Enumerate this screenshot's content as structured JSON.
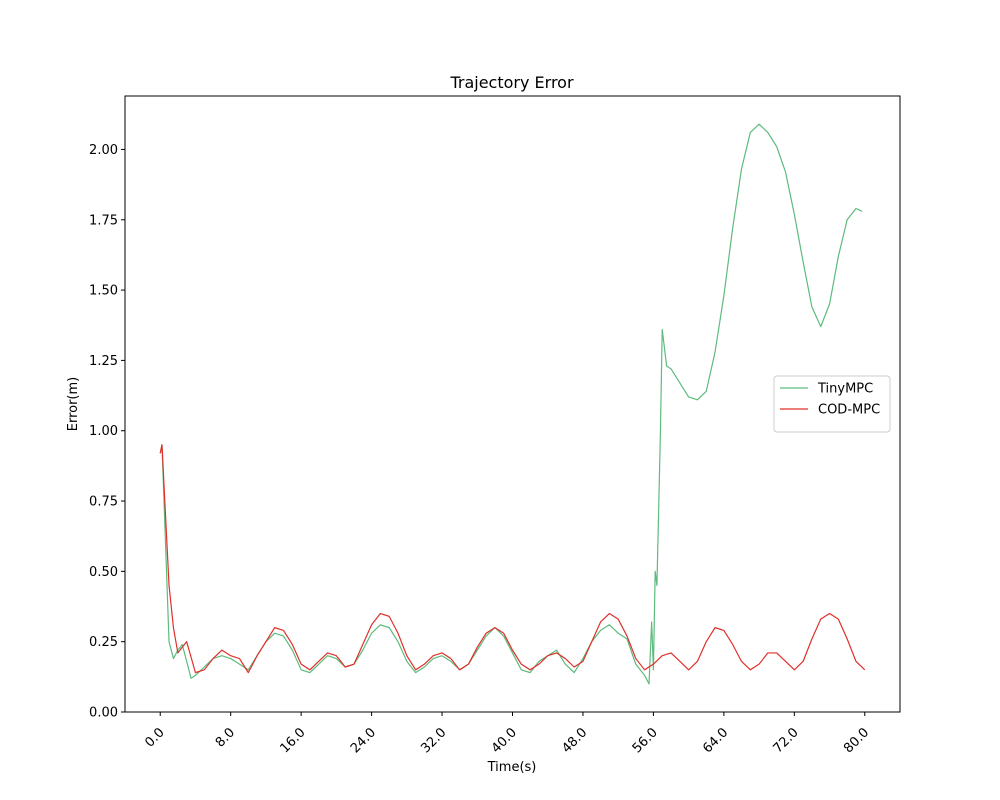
{
  "chart_data": {
    "type": "line",
    "title": "Trajectory Error",
    "x_label": "Time(s)",
    "y_label": "Error(m)",
    "xlim": [
      -4,
      84
    ],
    "ylim": [
      0.0,
      2.19
    ],
    "xticks": [
      {
        "value": 0,
        "label": "0.0"
      },
      {
        "value": 8,
        "label": "8.0"
      },
      {
        "value": 16,
        "label": "16.0"
      },
      {
        "value": 24,
        "label": "24.0"
      },
      {
        "value": 32,
        "label": "32.0"
      },
      {
        "value": 40,
        "label": "40.0"
      },
      {
        "value": 48,
        "label": "48.0"
      },
      {
        "value": 56,
        "label": "56.0"
      },
      {
        "value": 64,
        "label": "64.0"
      },
      {
        "value": 72,
        "label": "72.0"
      },
      {
        "value": 80,
        "label": "80.0"
      }
    ],
    "yticks": [
      {
        "value": 0,
        "label": "0.00"
      },
      {
        "value": 0.25,
        "label": "0.25"
      },
      {
        "value": 0.5,
        "label": "0.50"
      },
      {
        "value": 0.75,
        "label": "0.75"
      },
      {
        "value": 1.0,
        "label": "1.00"
      },
      {
        "value": 1.25,
        "label": "1.25"
      },
      {
        "value": 1.5,
        "label": "1.50"
      },
      {
        "value": 1.75,
        "label": "1.75"
      },
      {
        "value": 2.0,
        "label": "2.00"
      }
    ],
    "grid": false,
    "legend": "center right",
    "series": [
      {
        "name": "TinyMPC",
        "color": "#5dbb7e",
        "x": [
          0,
          0.2,
          1,
          1.5,
          2,
          2.5,
          3,
          3.5,
          4,
          5,
          6,
          7,
          8,
          9,
          10,
          11,
          12,
          13,
          14,
          15,
          16,
          17,
          18,
          19,
          20,
          21,
          22,
          23,
          24,
          25,
          26,
          27,
          28,
          29,
          30,
          31,
          32,
          33,
          34,
          35,
          36,
          37,
          38,
          39,
          40,
          41,
          42,
          43,
          44,
          45,
          46,
          47,
          48,
          49,
          50,
          51,
          52,
          53,
          54,
          55,
          55.5,
          55.8,
          56,
          56.2,
          56.4,
          56.8,
          57,
          57.5,
          58,
          59,
          60,
          61,
          62,
          63,
          64,
          65,
          66,
          67,
          68,
          69,
          70,
          71,
          72,
          73,
          74,
          75,
          76,
          77,
          78,
          79,
          79.7
        ],
        "values": [
          0.92,
          0.95,
          0.25,
          0.19,
          0.22,
          0.24,
          0.18,
          0.12,
          0.13,
          0.16,
          0.19,
          0.2,
          0.19,
          0.17,
          0.15,
          0.2,
          0.25,
          0.28,
          0.27,
          0.22,
          0.15,
          0.14,
          0.17,
          0.2,
          0.19,
          0.16,
          0.17,
          0.22,
          0.28,
          0.31,
          0.3,
          0.25,
          0.18,
          0.14,
          0.16,
          0.19,
          0.2,
          0.18,
          0.15,
          0.17,
          0.22,
          0.27,
          0.3,
          0.27,
          0.21,
          0.15,
          0.14,
          0.18,
          0.2,
          0.22,
          0.17,
          0.14,
          0.19,
          0.25,
          0.29,
          0.31,
          0.28,
          0.26,
          0.17,
          0.13,
          0.1,
          0.32,
          0.15,
          0.5,
          0.45,
          1.0,
          1.36,
          1.23,
          1.22,
          1.17,
          1.12,
          1.11,
          1.14,
          1.28,
          1.48,
          1.72,
          1.93,
          2.06,
          2.09,
          2.06,
          2.01,
          1.92,
          1.77,
          1.6,
          1.44,
          1.37,
          1.45,
          1.62,
          1.75,
          1.79,
          1.78
        ]
      },
      {
        "name": "COD-MPC",
        "color": "#e0302a",
        "x": [
          0,
          0.2,
          1,
          1.5,
          2,
          3,
          4,
          5,
          6,
          7,
          8,
          9,
          10,
          11,
          12,
          13,
          14,
          15,
          16,
          17,
          18,
          19,
          20,
          21,
          22,
          23,
          24,
          25,
          26,
          27,
          28,
          29,
          30,
          31,
          32,
          33,
          34,
          35,
          36,
          37,
          38,
          39,
          40,
          41,
          42,
          43,
          44,
          45,
          46,
          47,
          48,
          49,
          50,
          51,
          52,
          53,
          54,
          55,
          56,
          57,
          58,
          59,
          60,
          61,
          62,
          63,
          64,
          65,
          66,
          67,
          68,
          69,
          70,
          71,
          72,
          73,
          74,
          75,
          76,
          77,
          78,
          79,
          80
        ],
        "values": [
          0.92,
          0.95,
          0.45,
          0.3,
          0.21,
          0.25,
          0.14,
          0.15,
          0.19,
          0.22,
          0.2,
          0.19,
          0.14,
          0.2,
          0.25,
          0.3,
          0.29,
          0.24,
          0.17,
          0.15,
          0.18,
          0.21,
          0.2,
          0.16,
          0.17,
          0.24,
          0.31,
          0.35,
          0.34,
          0.28,
          0.2,
          0.15,
          0.17,
          0.2,
          0.21,
          0.19,
          0.15,
          0.17,
          0.23,
          0.28,
          0.3,
          0.28,
          0.22,
          0.17,
          0.15,
          0.17,
          0.2,
          0.21,
          0.19,
          0.16,
          0.18,
          0.25,
          0.32,
          0.35,
          0.33,
          0.27,
          0.19,
          0.15,
          0.17,
          0.2,
          0.21,
          0.18,
          0.15,
          0.18,
          0.25,
          0.3,
          0.29,
          0.24,
          0.18,
          0.15,
          0.17,
          0.21,
          0.21,
          0.18,
          0.15,
          0.18,
          0.26,
          0.33,
          0.35,
          0.33,
          0.26,
          0.18,
          0.15
        ]
      }
    ]
  }
}
